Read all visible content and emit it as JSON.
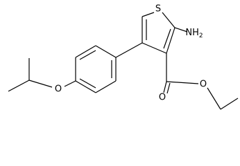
{
  "atoms": [
    {
      "symbol": "S"
    },
    {
      "symbol": "NH",
      "subscript": "2"
    },
    {
      "symbol": "O"
    },
    {
      "symbol": "O"
    },
    {
      "symbol": "O"
    }
  ]
}
